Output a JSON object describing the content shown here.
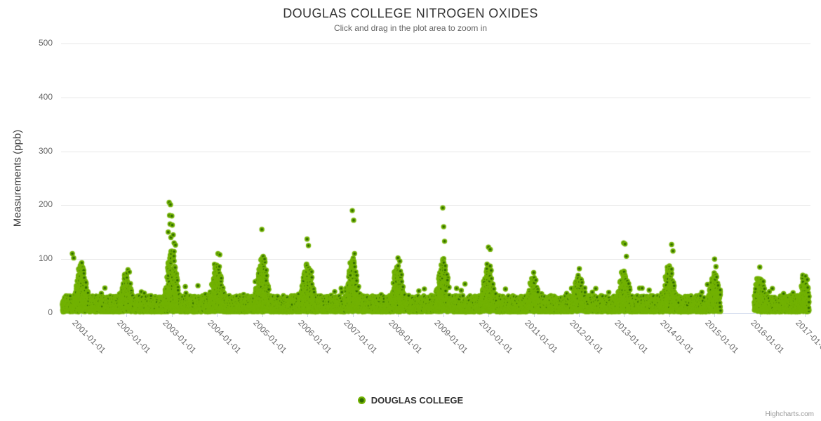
{
  "credits": "Highcharts.com",
  "chart_data": {
    "type": "scatter",
    "title": "DOUGLAS COLLEGE NITROGEN OXIDES",
    "subtitle": "Click and drag in the plot area to zoom in",
    "xlabel": "",
    "ylabel": "Measurements (ppb)",
    "ylim": [
      0,
      500
    ],
    "yticks": [
      0,
      100,
      200,
      300,
      400,
      500
    ],
    "grid": "horizontal",
    "x_axis_type": "datetime",
    "xlim": [
      2000.55,
      2017.12
    ],
    "xticks": [
      {
        "value": 2001,
        "label": "2001-01-01"
      },
      {
        "value": 2002,
        "label": "2002-01-01"
      },
      {
        "value": 2003,
        "label": "2003-01-01"
      },
      {
        "value": 2004,
        "label": "2004-01-01"
      },
      {
        "value": 2005,
        "label": "2005-01-01"
      },
      {
        "value": 2006,
        "label": "2006-01-01"
      },
      {
        "value": 2007,
        "label": "2007-01-01"
      },
      {
        "value": 2008,
        "label": "2008-01-01"
      },
      {
        "value": 2009,
        "label": "2009-01-01"
      },
      {
        "value": 2010,
        "label": "2010-01-01"
      },
      {
        "value": 2011,
        "label": "2011-01-01"
      },
      {
        "value": 2012,
        "label": "2012-01-01"
      },
      {
        "value": 2013,
        "label": "2013-01-01"
      },
      {
        "value": 2014,
        "label": "2014-01-01"
      },
      {
        "value": 2015,
        "label": "2015-01-01"
      },
      {
        "value": 2016,
        "label": "2016-01-01"
      },
      {
        "value": 2017,
        "label": "2017-01-01"
      }
    ],
    "legend_position": "bottom-center",
    "series": [
      {
        "name": "DOUGLAS COLLEGE",
        "marker": "circle",
        "color": "#72b203",
        "marker_center": "#2f6a00"
      }
    ],
    "sampling": "daily",
    "data_start": 2000.58,
    "data_end": 2017.09,
    "data_gap": [
      2015.13,
      2015.88
    ],
    "baseline_band": [
      0,
      35
    ],
    "seasonal_winter_peaks": {
      "2001": 100,
      "2002": 80,
      "2003": 125,
      "2004": 105,
      "2005": 112,
      "2006": 102,
      "2007": 108,
      "2008": 98,
      "2009": 108,
      "2010": 92,
      "2011": 72,
      "2012": 80,
      "2013": 92,
      "2014": 98,
      "2015": 82,
      "2016": 75,
      "2017": 68
    },
    "outliers": [
      [
        2000.8,
        110
      ],
      [
        2000.83,
        102
      ],
      [
        2002.03,
        80
      ],
      [
        2002.06,
        76
      ],
      [
        2002.92,
        150
      ],
      [
        2002.94,
        205
      ],
      [
        2002.95,
        181
      ],
      [
        2002.96,
        165
      ],
      [
        2002.97,
        201
      ],
      [
        2002.98,
        140
      ],
      [
        2003.0,
        180
      ],
      [
        2003.01,
        163
      ],
      [
        2003.03,
        145
      ],
      [
        2003.05,
        130
      ],
      [
        2003.08,
        126
      ],
      [
        2004.02,
        110
      ],
      [
        2004.06,
        108
      ],
      [
        2004.99,
        155
      ],
      [
        2005.02,
        105
      ],
      [
        2005.05,
        100
      ],
      [
        2005.99,
        137
      ],
      [
        2006.02,
        125
      ],
      [
        2006.99,
        190
      ],
      [
        2007.02,
        172
      ],
      [
        2007.04,
        110
      ],
      [
        2008.0,
        102
      ],
      [
        2008.04,
        96
      ],
      [
        2008.99,
        195
      ],
      [
        2009.01,
        160
      ],
      [
        2009.03,
        133
      ],
      [
        2010.0,
        122
      ],
      [
        2010.04,
        118
      ],
      [
        2011.0,
        75
      ],
      [
        2012.01,
        82
      ],
      [
        2012.99,
        130
      ],
      [
        2013.02,
        128
      ],
      [
        2013.05,
        105
      ],
      [
        2014.05,
        127
      ],
      [
        2014.08,
        115
      ],
      [
        2015.0,
        100
      ],
      [
        2015.03,
        86
      ],
      [
        2016.0,
        85
      ],
      [
        2016.95,
        70
      ],
      [
        2017.01,
        68
      ],
      [
        2017.05,
        62
      ]
    ],
    "generator": {
      "seed": 42,
      "winter_sigma": 0.11,
      "points_per_day": 1
    }
  }
}
